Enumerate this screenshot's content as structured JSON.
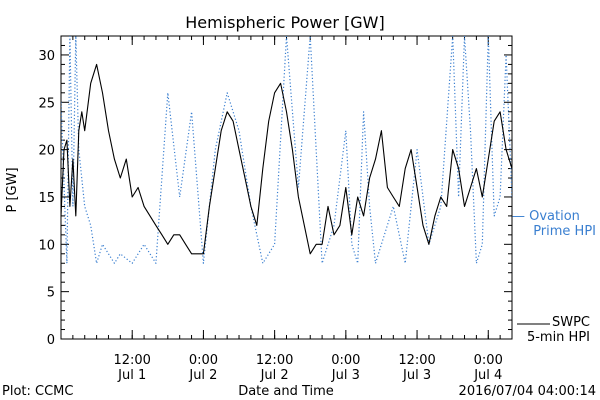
{
  "chart_data": {
    "type": "line",
    "title": "Hemispheric Power [GW]",
    "xlabel": "Date and Time",
    "ylabel": "P [GW]",
    "ylim": [
      0,
      32
    ],
    "yticks": [
      0,
      5,
      10,
      15,
      20,
      25,
      30
    ],
    "xlim": [
      "2016-07-01T00:00",
      "2016-07-04T04:00"
    ],
    "xticks": [
      {
        "t": "2016-07-01T12:00",
        "time": "12:00",
        "date": "Jul 1"
      },
      {
        "t": "2016-07-02T00:00",
        "time": "0:00",
        "date": "Jul 2"
      },
      {
        "t": "2016-07-02T12:00",
        "time": "12:00",
        "date": "Jul 2"
      },
      {
        "t": "2016-07-03T00:00",
        "time": "0:00",
        "date": "Jul 3"
      },
      {
        "t": "2016-07-03T12:00",
        "time": "12:00",
        "date": "Jul 3"
      },
      {
        "t": "2016-07-04T00:00",
        "time": "0:00",
        "date": "Jul 4"
      }
    ],
    "grid": false,
    "series": [
      {
        "name": "Ovation Prime HPI",
        "name_lines": [
          "— Ovation",
          "Prime HPI"
        ],
        "color": "#3a7fd0",
        "style": "dotted",
        "x": [
          "2016-07-01T00:00",
          "2016-07-01T01:00",
          "2016-07-01T01:30",
          "2016-07-01T02:00",
          "2016-07-01T02:30",
          "2016-07-01T03:00",
          "2016-07-01T04:00",
          "2016-07-01T05:00",
          "2016-07-01T06:00",
          "2016-07-01T07:00",
          "2016-07-01T08:00",
          "2016-07-01T09:00",
          "2016-07-01T10:00",
          "2016-07-01T12:00",
          "2016-07-01T14:00",
          "2016-07-01T16:00",
          "2016-07-01T18:00",
          "2016-07-01T20:00",
          "2016-07-01T22:00",
          "2016-07-02T00:00",
          "2016-07-02T02:00",
          "2016-07-02T04:00",
          "2016-07-02T06:00",
          "2016-07-02T08:00",
          "2016-07-02T10:00",
          "2016-07-02T12:00",
          "2016-07-02T14:00",
          "2016-07-02T16:00",
          "2016-07-02T18:00",
          "2016-07-02T20:00",
          "2016-07-02T22:00",
          "2016-07-03T00:00",
          "2016-07-03T01:00",
          "2016-07-03T02:00",
          "2016-07-03T03:00",
          "2016-07-03T04:00",
          "2016-07-03T05:00",
          "2016-07-03T06:00",
          "2016-07-03T08:00",
          "2016-07-03T10:00",
          "2016-07-03T12:00",
          "2016-07-03T14:00",
          "2016-07-03T16:00",
          "2016-07-03T18:00",
          "2016-07-03T19:00",
          "2016-07-03T20:00",
          "2016-07-03T21:00",
          "2016-07-03T22:00",
          "2016-07-03T23:00",
          "2016-07-04T00:00",
          "2016-07-04T01:00",
          "2016-07-04T02:00",
          "2016-07-04T03:00",
          "2016-07-04T04:00"
        ],
        "y": [
          25,
          8,
          32,
          14,
          32,
          20,
          14,
          12,
          8,
          10,
          9,
          8,
          9,
          8,
          10,
          8,
          26,
          15,
          24,
          8,
          20,
          26,
          22,
          14,
          8,
          10,
          32,
          16,
          32,
          8,
          12,
          22,
          10,
          8,
          24,
          14,
          8,
          10,
          14,
          8,
          20,
          10,
          14,
          32,
          15,
          32,
          22,
          8,
          10,
          32,
          13,
          15,
          30,
          15
        ]
      },
      {
        "name": "SWPC 5-min HPI",
        "name_lines": [
          "SWPC",
          "5-min HPI"
        ],
        "color": "#000000",
        "style": "solid",
        "x": [
          "2016-07-01T00:00",
          "2016-07-01T00:30",
          "2016-07-01T01:00",
          "2016-07-01T01:30",
          "2016-07-01T02:00",
          "2016-07-01T02:30",
          "2016-07-01T03:00",
          "2016-07-01T03:30",
          "2016-07-01T04:00",
          "2016-07-01T05:00",
          "2016-07-01T06:00",
          "2016-07-01T07:00",
          "2016-07-01T08:00",
          "2016-07-01T09:00",
          "2016-07-01T10:00",
          "2016-07-01T11:00",
          "2016-07-01T12:00",
          "2016-07-01T13:00",
          "2016-07-01T14:00",
          "2016-07-01T15:00",
          "2016-07-01T16:00",
          "2016-07-01T17:00",
          "2016-07-01T18:00",
          "2016-07-01T19:00",
          "2016-07-01T20:00",
          "2016-07-01T21:00",
          "2016-07-01T22:00",
          "2016-07-01T23:00",
          "2016-07-02T00:00",
          "2016-07-02T01:00",
          "2016-07-02T02:00",
          "2016-07-02T03:00",
          "2016-07-02T04:00",
          "2016-07-02T05:00",
          "2016-07-02T06:00",
          "2016-07-02T07:00",
          "2016-07-02T08:00",
          "2016-07-02T09:00",
          "2016-07-02T10:00",
          "2016-07-02T11:00",
          "2016-07-02T12:00",
          "2016-07-02T13:00",
          "2016-07-02T14:00",
          "2016-07-02T15:00",
          "2016-07-02T16:00",
          "2016-07-02T17:00",
          "2016-07-02T18:00",
          "2016-07-02T19:00",
          "2016-07-02T20:00",
          "2016-07-02T21:00",
          "2016-07-02T22:00",
          "2016-07-02T23:00",
          "2016-07-03T00:00",
          "2016-07-03T01:00",
          "2016-07-03T02:00",
          "2016-07-03T03:00",
          "2016-07-03T04:00",
          "2016-07-03T05:00",
          "2016-07-03T06:00",
          "2016-07-03T07:00",
          "2016-07-03T08:00",
          "2016-07-03T09:00",
          "2016-07-03T10:00",
          "2016-07-03T11:00",
          "2016-07-03T12:00",
          "2016-07-03T13:00",
          "2016-07-03T14:00",
          "2016-07-03T15:00",
          "2016-07-03T16:00",
          "2016-07-03T17:00",
          "2016-07-03T18:00",
          "2016-07-03T19:00",
          "2016-07-03T20:00",
          "2016-07-03T21:00",
          "2016-07-03T22:00",
          "2016-07-03T23:00",
          "2016-07-04T00:00",
          "2016-07-04T01:00",
          "2016-07-04T02:00",
          "2016-07-04T03:00",
          "2016-07-04T04:00"
        ],
        "y": [
          13,
          20,
          21,
          14,
          19,
          13,
          22,
          24,
          22,
          27,
          29,
          26,
          22,
          19,
          17,
          19,
          15,
          16,
          14,
          13,
          12,
          11,
          10,
          11,
          11,
          10,
          9,
          9,
          9,
          14,
          18,
          22,
          24,
          23,
          20,
          17,
          14,
          12,
          18,
          23,
          26,
          27,
          24,
          20,
          15,
          12,
          9,
          10,
          10,
          14,
          11,
          12,
          16,
          11,
          15,
          13,
          17,
          19,
          22,
          16,
          15,
          14,
          18,
          20,
          16,
          12,
          10,
          13,
          15,
          14,
          20,
          18,
          14,
          16,
          18,
          15,
          19,
          23,
          24,
          20,
          18
        ]
      }
    ],
    "footer": {
      "left": "Plot: CCMC",
      "right": "2016/07/04 04:00:14"
    }
  }
}
